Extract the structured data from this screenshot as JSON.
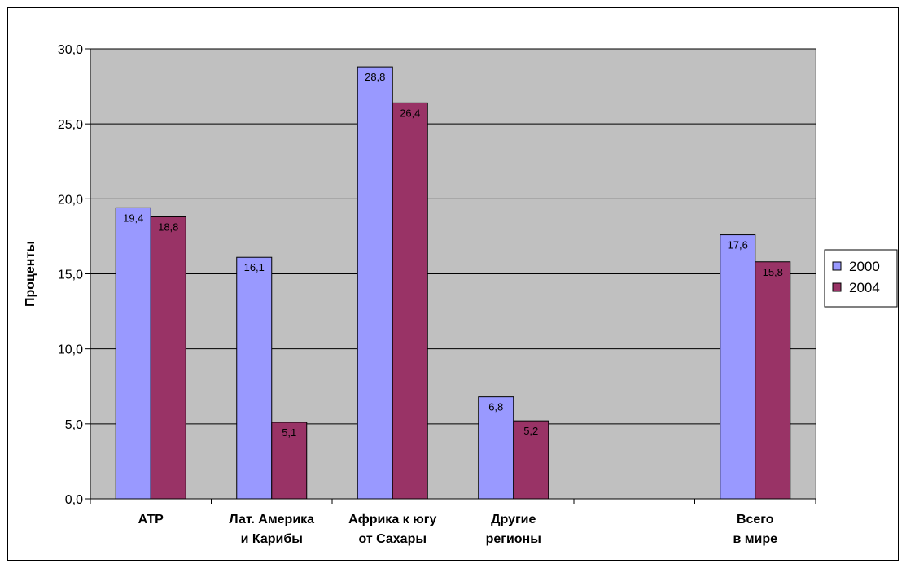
{
  "chart_data": {
    "type": "bar",
    "title": "",
    "ylabel": "Проценты",
    "xlabel": "",
    "ylim": [
      0,
      30
    ],
    "yticks": [
      "0,0",
      "5,0",
      "10,0",
      "15,0",
      "20,0",
      "25,0",
      "30,0"
    ],
    "grid": true,
    "legend_position": "right",
    "categories": [
      [
        "АТР"
      ],
      [
        "Лат. Америка",
        "и Карибы"
      ],
      [
        "Африка к югу",
        "от Сахары"
      ],
      [
        "Другие",
        "регионы"
      ],
      [
        ""
      ],
      [
        "Всего",
        "в мире"
      ]
    ],
    "series": [
      {
        "name": "2000",
        "color": "#9999ff",
        "values": [
          19.4,
          16.1,
          28.8,
          6.8,
          null,
          17.6
        ],
        "labels": [
          "19,4",
          "16,1",
          "28,8",
          "6,8",
          "",
          "17,6"
        ]
      },
      {
        "name": "2004",
        "color": "#993366",
        "values": [
          18.8,
          5.1,
          26.4,
          5.2,
          null,
          15.8
        ],
        "labels": [
          "18,8",
          "5,1",
          "26,4",
          "5,2",
          "",
          "15,8"
        ]
      }
    ],
    "plot_background": "#c0c0c0"
  }
}
